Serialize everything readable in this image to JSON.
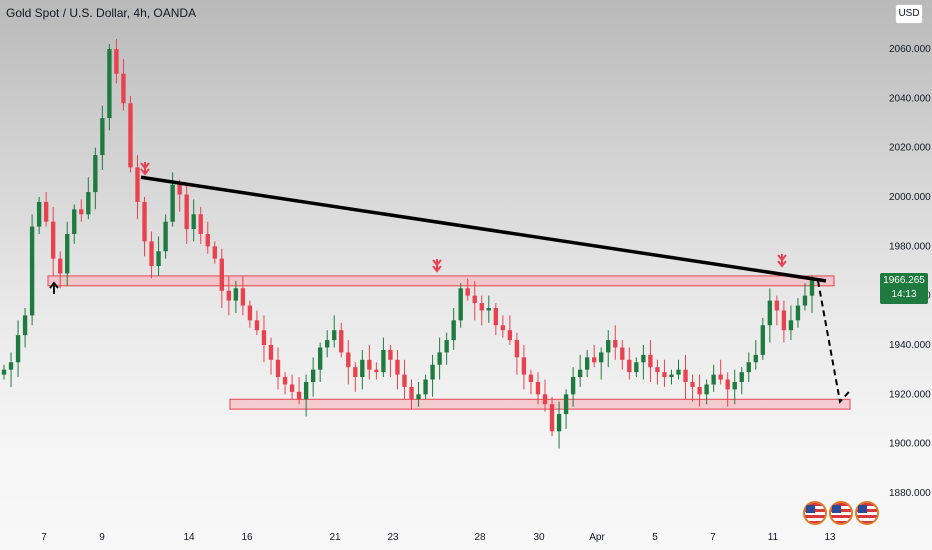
{
  "header": {
    "title": "Gold Spot / U.S. Dollar, 4h, OANDA",
    "currency": "USD"
  },
  "price_tag": {
    "price": "1966.265",
    "countdown": "14:13"
  },
  "colors": {
    "up": "#1e7a3e",
    "down": "#e8424f",
    "zone": "#f5b3b8",
    "zone_border": "#e8424f",
    "trendline": "#000000"
  },
  "chart_data": {
    "type": "candlestick",
    "title": "Gold Spot / U.S. Dollar, 4h, OANDA",
    "ylim": [
      1870,
      2070
    ],
    "yticks": [
      "2060.000",
      "2040.000",
      "2020.000",
      "2000.000",
      "1980.000",
      "1960.000",
      "1940.000",
      "1920.000",
      "1900.000",
      "1880.000"
    ],
    "xticks": [
      "7",
      "9",
      "14",
      "16",
      "21",
      "23",
      "28",
      "30",
      "Apr",
      "5",
      "7",
      "11",
      "13"
    ],
    "key_points": [
      {
        "label": "high",
        "value": 2070.0
      },
      {
        "label": "last",
        "value": 1966.265
      },
      {
        "label": "low",
        "value": 1891.0
      }
    ],
    "resistance_zone": [
      1964,
      1968
    ],
    "support_zone": [
      1914,
      1918
    ],
    "trendline": {
      "from": 2008,
      "to": 1966
    },
    "projection": {
      "from": 1966,
      "to": 1917
    },
    "closes": [
      1930,
      1933,
      1944,
      1952,
      1988,
      1998,
      1990,
      1975,
      1969,
      1985,
      1995,
      1993,
      2002,
      2017,
      2032,
      2060,
      2050,
      2038,
      2012,
      1998,
      1982,
      1972,
      1978,
      1990,
      2005,
      2001,
      1987,
      1993,
      1985,
      1980,
      1975,
      1962,
      1958,
      1963,
      1956,
      1950,
      1946,
      1940,
      1934,
      1927,
      1924,
      1921,
      1918,
      1925,
      1930,
      1939,
      1942,
      1946,
      1937,
      1931,
      1927,
      1934,
      1930,
      1929,
      1938,
      1934,
      1928,
      1923,
      1918,
      1920,
      1926,
      1932,
      1937,
      1942,
      1950,
      1963,
      1960,
      1957,
      1954,
      1955,
      1948,
      1946,
      1942,
      1935,
      1928,
      1925,
      1920,
      1916,
      1905,
      1912,
      1920,
      1927,
      1930,
      1935,
      1933,
      1937,
      1942,
      1939,
      1934,
      1929,
      1933,
      1936,
      1931,
      1929,
      1927,
      1928,
      1930,
      1925,
      1923,
      1920,
      1924,
      1928,
      1926,
      1922,
      1925,
      1929,
      1933,
      1936,
      1948,
      1958,
      1954,
      1946,
      1950,
      1956,
      1960,
      1966.265
    ]
  }
}
